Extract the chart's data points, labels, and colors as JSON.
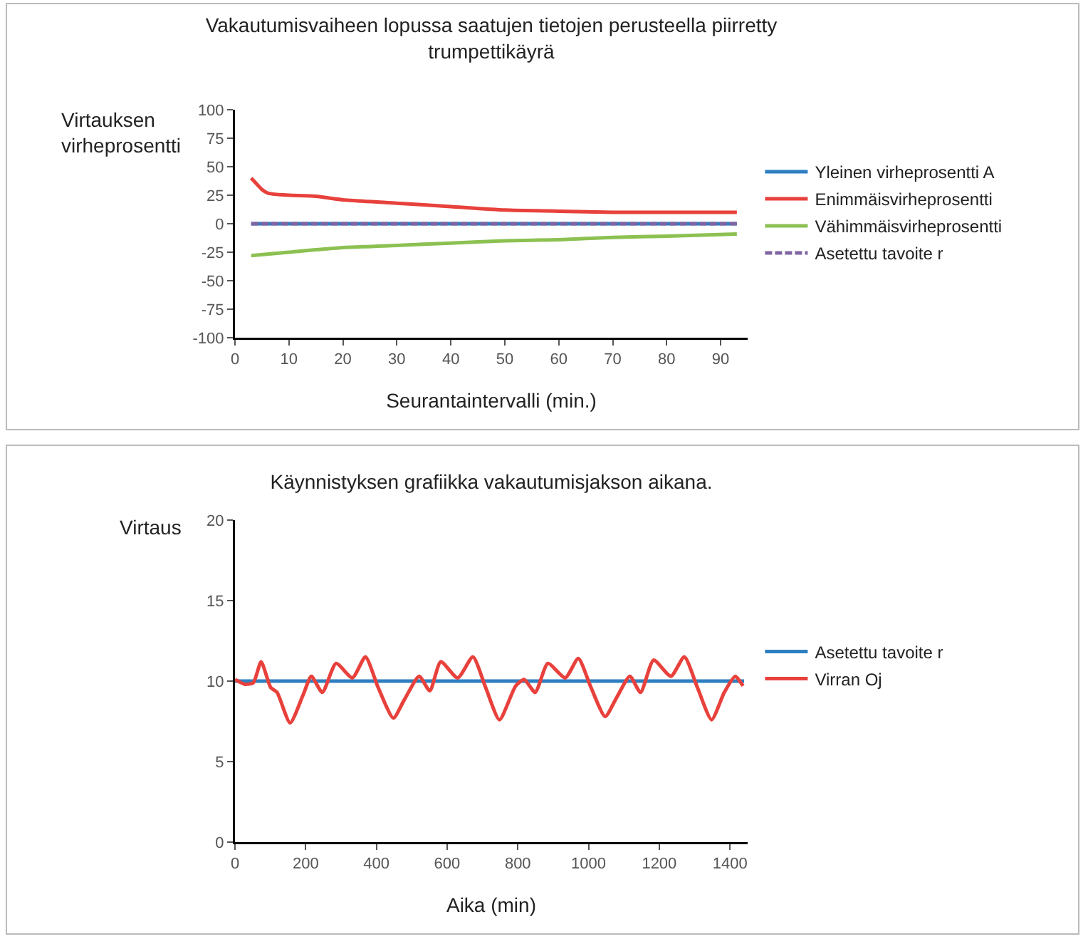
{
  "chart_data": [
    {
      "type": "line",
      "title": "Vakautumisvaiheen lopussa saatujen tietojen perusteella piirretty\ntrumpettikäyrä",
      "xlabel": "Seurantaintervalli (min.)",
      "ylabel": "Virtauksen\nvirheprosentti",
      "xlim": [
        0,
        95
      ],
      "xticks": [
        0,
        10,
        20,
        30,
        40,
        50,
        60,
        70,
        80,
        90
      ],
      "ylim": [
        -100,
        100
      ],
      "yticks": [
        -100,
        -75,
        -50,
        -25,
        0,
        25,
        50,
        75,
        100
      ],
      "grid": false,
      "legend": "right",
      "marker": "none",
      "series": [
        {
          "name": "Yleinen virheprosentti A",
          "color": "#2e7fc2",
          "x": [
            3,
            93
          ],
          "values": [
            0,
            0
          ]
        },
        {
          "name": "Enimmäisvirheprosentti",
          "color": "#e8413c",
          "x": [
            3,
            4,
            5,
            6,
            7,
            10,
            15,
            20,
            30,
            40,
            50,
            60,
            70,
            80,
            93
          ],
          "values": [
            40,
            35,
            30,
            27,
            26,
            25,
            24,
            21,
            18,
            15,
            12,
            11,
            10,
            10,
            10
          ]
        },
        {
          "name": "Vähimmäisvirheprosentti",
          "color": "#8cc152",
          "x": [
            3,
            10,
            20,
            30,
            40,
            50,
            60,
            70,
            80,
            93
          ],
          "values": [
            -28,
            -25,
            -21,
            -19,
            -17,
            -15,
            -14,
            -12,
            -11,
            -9
          ]
        },
        {
          "name": "Asetettu tavoite r",
          "color": "#8064a2",
          "x": [
            3,
            93
          ],
          "values": [
            0,
            0
          ],
          "line_style": "dashed"
        }
      ]
    },
    {
      "type": "line",
      "title": "Käynnistyksen grafiikka vakautumisjakson aikana.",
      "xlabel": "Aika (min)",
      "ylabel": "Virtaus",
      "xlim": [
        0,
        1450
      ],
      "xticks": [
        0,
        200,
        400,
        600,
        800,
        1000,
        1200,
        1400
      ],
      "ylim": [
        0,
        20
      ],
      "yticks": [
        0,
        5,
        10,
        15,
        20
      ],
      "grid": false,
      "legend": "right",
      "marker": "none",
      "series": [
        {
          "name": "Asetettu tavoite r",
          "color": "#2e7fc2",
          "x": [
            0,
            1440
          ],
          "values": [
            10,
            10
          ]
        },
        {
          "name": "Virran Oj",
          "color": "#e8413c",
          "x": [
            0,
            28,
            52,
            74,
            101,
            119,
            156,
            192,
            216,
            247,
            286,
            332,
            369,
            405,
            448,
            478,
            521,
            551,
            582,
            630,
            673,
            709,
            748,
            794,
            818,
            849,
            885,
            934,
            971,
            1007,
            1047,
            1080,
            1117,
            1147,
            1184,
            1233,
            1271,
            1308,
            1348,
            1384,
            1415,
            1437
          ],
          "values": [
            10.1,
            9.8,
            9.9,
            11.2,
            9.6,
            9.3,
            7.4,
            9.1,
            10.3,
            9.3,
            11.1,
            10.2,
            11.5,
            9.6,
            7.7,
            8.8,
            10.3,
            9.4,
            11.2,
            10.2,
            11.5,
            9.6,
            7.6,
            9.7,
            10.1,
            9.3,
            11.1,
            10.2,
            11.4,
            9.6,
            7.8,
            9.0,
            10.3,
            9.3,
            11.3,
            10.3,
            11.5,
            9.6,
            7.6,
            9.3,
            10.3,
            9.7
          ]
        }
      ]
    }
  ]
}
